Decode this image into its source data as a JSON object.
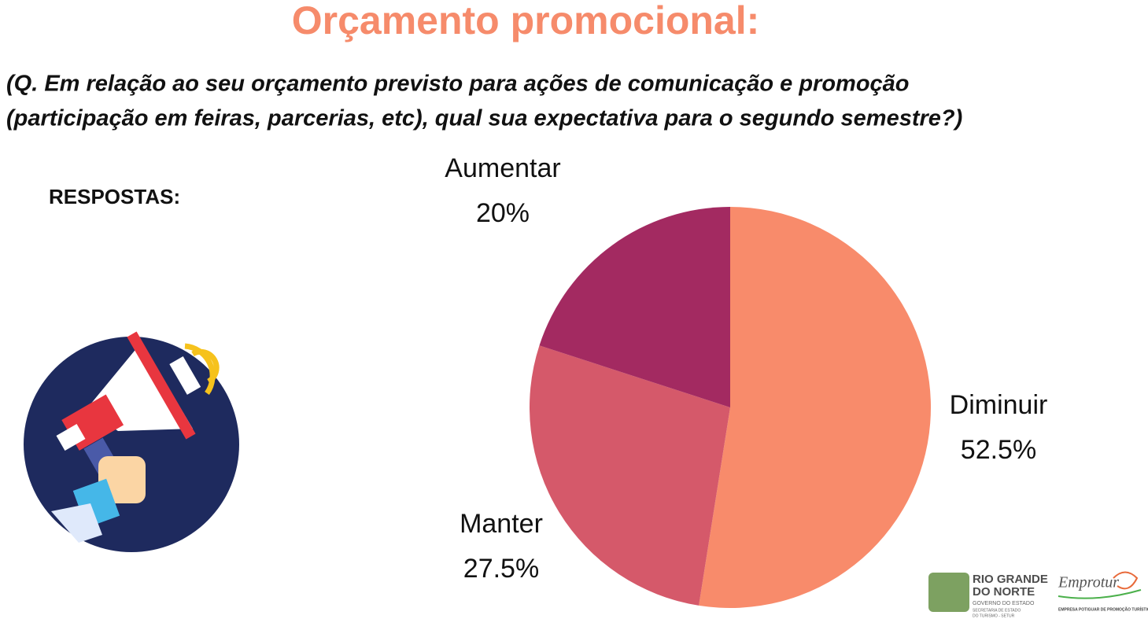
{
  "chart_data": {
    "type": "pie",
    "title": "Orçamento promocional:",
    "subtitle": [
      "(Q. Em relação ao seu orçamento previsto para ações de comunicação e promoção",
      "(participação em feiras, parcerias, etc), qual sua expectativa para o segundo semestre?)"
    ],
    "categories": [
      "Diminuir",
      "Manter",
      "Aumentar"
    ],
    "values": [
      52.5,
      27.5,
      20
    ],
    "value_labels": [
      "52.5%",
      "27.5%",
      "20%"
    ],
    "colors": [
      "#f88b6b",
      "#d5596a",
      "#a32a61"
    ]
  },
  "slide": {
    "label": "RESPOSTAS:",
    "logo_left": [
      "RIO GRANDE",
      "DO NORTE",
      "GOVERNO DO ESTADO",
      "SECRETARIA DE ESTADO",
      "DO TURISMO - SETUR"
    ],
    "logo_right": [
      "Emprotur",
      "EMPRESA POTIGUAR DE PROMOÇÃO TURÍSTICA"
    ]
  }
}
